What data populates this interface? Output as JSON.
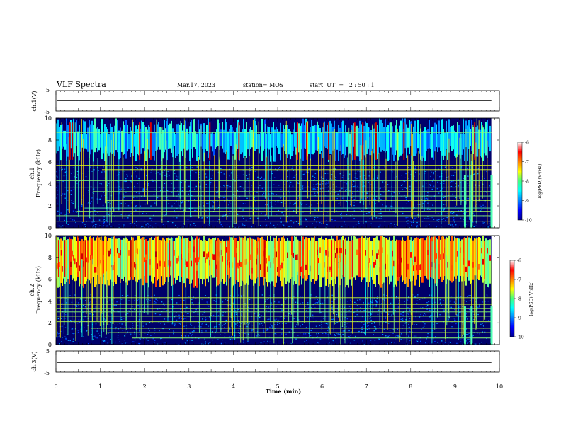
{
  "header": {
    "title": "VLF Spectra",
    "date": "Mar.17, 2023",
    "station": "station= MOS",
    "start_ut": "start  UT  =   2 : 50 : 1"
  },
  "chart_data": [
    {
      "type": "line",
      "panel": "ch1-waveform",
      "ylabel": "ch.1(V)",
      "ylim": [
        -5,
        5
      ],
      "y_ticks": [
        "5",
        "-5"
      ],
      "series": [
        {
          "x": [
            0,
            9.82
          ],
          "y": [
            0,
            0
          ]
        }
      ],
      "xlim": [
        0,
        10
      ]
    },
    {
      "type": "heatmap",
      "panel": "ch1-spectrogram",
      "ylabel_top": "ch.1",
      "ylabel": "Frequency (kHz)",
      "ylim": [
        0,
        10
      ],
      "y_ticks": [
        "0",
        "2",
        "4",
        "6",
        "8",
        "10"
      ],
      "xlim": [
        0,
        10
      ],
      "data_end_min": 9.82,
      "colorbar": {
        "label": "log(PSD)(V²/Hz)",
        "range": [
          -10,
          -6
        ],
        "ticks": [
          "-6",
          "-7",
          "-8",
          "-9",
          "-10"
        ]
      },
      "persistent_lines_khz": [
        0.6,
        1.1,
        1.5,
        1.8,
        2.5,
        2.9,
        3.3,
        3.7,
        4.3,
        5.0,
        5.3,
        5.7,
        8.7
      ],
      "seed": 7
    },
    {
      "type": "heatmap",
      "panel": "ch2-spectrogram",
      "ylabel_top": "ch.2",
      "ylabel": "Frequency (kHz)",
      "ylim": [
        0,
        10
      ],
      "y_ticks": [
        "0",
        "2",
        "4",
        "6",
        "8",
        "10"
      ],
      "xlim": [
        0,
        10
      ],
      "data_end_min": 9.82,
      "colorbar": {
        "label": "log(PSD)(V²/Hz)",
        "range": [
          -10,
          -6
        ],
        "ticks": [
          "-6",
          "-7",
          "-8",
          "-9",
          "-10"
        ]
      },
      "persistent_lines_khz": [
        0.6,
        1.1,
        1.5,
        2.1,
        2.6,
        3.0,
        3.3,
        3.7,
        4.0,
        4.3
      ],
      "seed": 13
    },
    {
      "type": "line",
      "panel": "ch3-waveform",
      "ylabel": "ch.3(V)",
      "ylim": [
        -5,
        5
      ],
      "y_ticks": [
        "5",
        "-5"
      ],
      "series": [
        {
          "x": [
            0,
            9.82
          ],
          "y": [
            0,
            0
          ]
        }
      ],
      "xlim": [
        0,
        10
      ]
    }
  ],
  "x_axis": {
    "label": "Time (min)",
    "ticks": [
      "0",
      "1",
      "2",
      "3",
      "4",
      "5",
      "6",
      "7",
      "8",
      "9",
      "10"
    ]
  }
}
